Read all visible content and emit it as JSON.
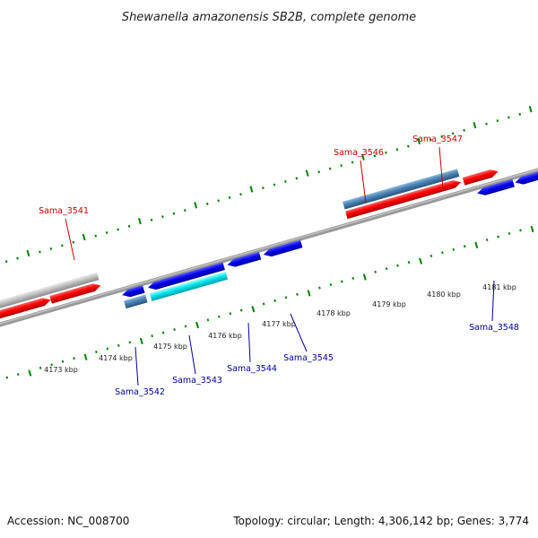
{
  "title": "Shewanella amazonensis SB2B, complete genome",
  "footer": {
    "accession": "Accession: NC_008700",
    "topology": "Topology: circular; Length: 4,306,142 bp; Genes: 3,774"
  },
  "colors": {
    "forward": "#ff0000",
    "reverse": "#0000ee",
    "cyan": "#00e5ee",
    "steel": "#4682b4",
    "gray": "#c0c0c0",
    "tick": "#008000",
    "backbone": "#808080",
    "label_forward": "#cc0000",
    "label_reverse": "#000099"
  },
  "kbp_labels": [
    "4173 kbp",
    "4174 kbp",
    "4175 kbp",
    "4176 kbp",
    "4177 kbp",
    "4178 kbp",
    "4179 kbp",
    "4180 kbp",
    "4181 kbp"
  ],
  "gene_labels": {
    "forward": [
      "Sama_3541",
      "Sama_3546",
      "Sama_3547"
    ],
    "reverse": [
      "Sama_3542",
      "Sama_3543",
      "Sama_3544",
      "Sama_3545",
      "Sama_3548"
    ]
  }
}
